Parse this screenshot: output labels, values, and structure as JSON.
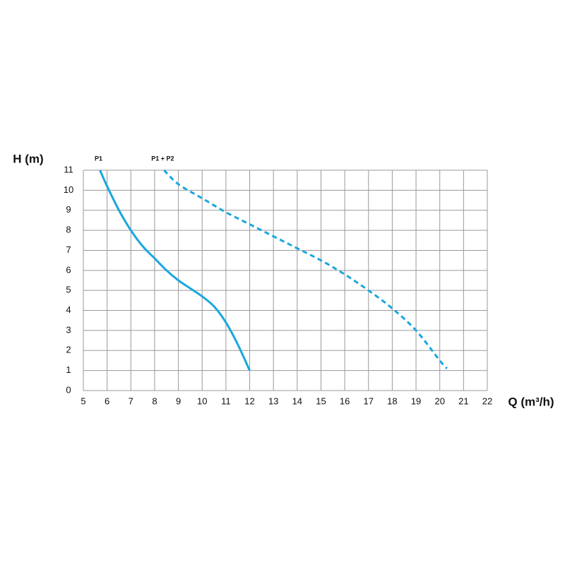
{
  "chart_data": {
    "type": "line",
    "y_label": "H (m)",
    "x_label": "Q (m³/h)",
    "xlim": [
      5,
      22
    ],
    "xticks": [
      5,
      6,
      7,
      8,
      9,
      10,
      11,
      12,
      13,
      14,
      15,
      16,
      17,
      18,
      19,
      20,
      21,
      22
    ],
    "ylim": [
      0,
      11
    ],
    "yticks": [
      0,
      1,
      2,
      3,
      4,
      5,
      6,
      7,
      8,
      9,
      10,
      11
    ],
    "grid": true,
    "series": [
      {
        "name": "P1",
        "color": "#1aa7de",
        "dashed": false,
        "x": [
          5.7,
          6,
          6.5,
          7,
          7.5,
          8,
          8.5,
          9,
          9.5,
          10,
          10.5,
          11,
          11.5,
          12
        ],
        "values": [
          11,
          10.2,
          9,
          8,
          7.2,
          6.6,
          6,
          5.5,
          5.1,
          4.7,
          4.2,
          3.4,
          2.3,
          1
        ]
      },
      {
        "name": "P1 + P2",
        "color": "#1aa7de",
        "dashed": true,
        "x": [
          8.4,
          9,
          10,
          11,
          12,
          13,
          14,
          15,
          16,
          17,
          18,
          19,
          20,
          20.3
        ],
        "values": [
          11,
          10.3,
          9.6,
          8.9,
          8.3,
          7.7,
          7.1,
          6.5,
          5.8,
          5,
          4.1,
          3,
          1.5,
          1.1
        ]
      }
    ]
  }
}
